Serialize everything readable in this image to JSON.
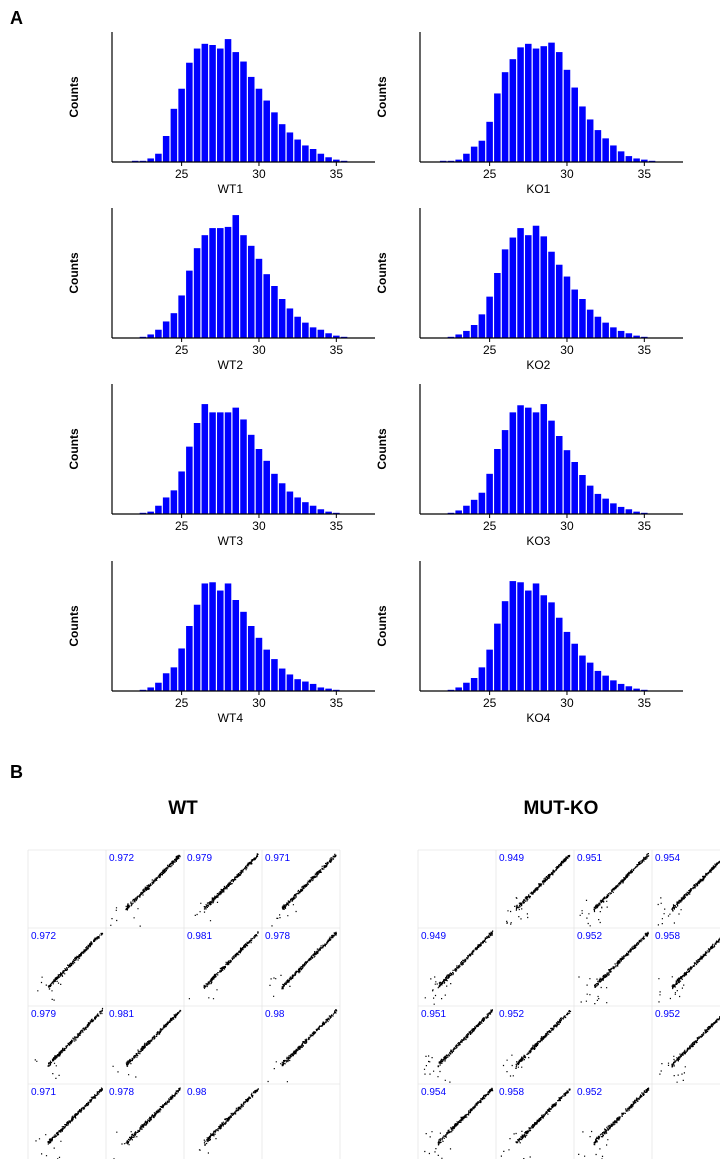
{
  "panel_labels": {
    "a": "A",
    "b": "B"
  },
  "chart_data": [
    {
      "type": "bar",
      "kind": "histogram",
      "panel": "A",
      "bar_color": "#0000ff",
      "xlim": [
        20.5,
        37.5
      ],
      "xticks": [
        25,
        30,
        35
      ],
      "bin_width": 0.5,
      "bin_centers": [
        21.5,
        22,
        22.5,
        23,
        23.5,
        24,
        24.5,
        25,
        25.5,
        26,
        26.5,
        27,
        27.5,
        28,
        28.5,
        29,
        29.5,
        30,
        30.5,
        31,
        31.5,
        32,
        32.5,
        33,
        33.5,
        34,
        34.5,
        35,
        35.5,
        36,
        36.5,
        37
      ],
      "ylabel": "Counts",
      "ymax": 110,
      "histograms": [
        {
          "name": "WT1",
          "values": [
            0,
            1,
            1,
            3,
            7,
            22,
            45,
            62,
            84,
            96,
            100,
            99,
            96,
            104,
            93,
            85,
            72,
            62,
            52,
            42,
            32,
            25,
            19,
            14,
            11,
            7,
            4,
            2,
            1,
            0,
            0,
            0
          ]
        },
        {
          "name": "KO1",
          "values": [
            0,
            1,
            1,
            2,
            7,
            13,
            18,
            34,
            58,
            76,
            87,
            97,
            100,
            96,
            98,
            101,
            93,
            78,
            63,
            47,
            36,
            27,
            20,
            14,
            9,
            5,
            3,
            2,
            1,
            0,
            0,
            0
          ]
        },
        {
          "name": "WT2",
          "values": [
            0,
            0,
            1,
            3,
            7,
            14,
            21,
            36,
            57,
            76,
            87,
            93,
            93,
            94,
            104,
            87,
            78,
            67,
            54,
            44,
            33,
            25,
            18,
            13,
            9,
            7,
            4,
            2,
            1,
            0,
            0,
            0
          ]
        },
        {
          "name": "KO2",
          "values": [
            0,
            0,
            1,
            3,
            6,
            11,
            20,
            35,
            55,
            75,
            85,
            93,
            87,
            95,
            86,
            73,
            62,
            52,
            41,
            33,
            24,
            18,
            13,
            9,
            6,
            4,
            2,
            1,
            0,
            0,
            0,
            0
          ]
        },
        {
          "name": "WT3",
          "values": [
            0,
            0,
            1,
            2,
            7,
            14,
            20,
            36,
            57,
            77,
            93,
            86,
            86,
            86,
            90,
            80,
            67,
            55,
            45,
            34,
            26,
            19,
            14,
            10,
            7,
            4,
            2,
            1,
            0,
            0,
            0,
            0
          ]
        },
        {
          "name": "KO3",
          "values": [
            0,
            0,
            1,
            3,
            7,
            12,
            18,
            34,
            55,
            71,
            86,
            92,
            90,
            86,
            93,
            79,
            66,
            54,
            44,
            33,
            24,
            17,
            13,
            9,
            6,
            4,
            2,
            1,
            0,
            0,
            0,
            0
          ]
        },
        {
          "name": "WT4",
          "values": [
            0,
            0,
            1,
            3,
            7,
            15,
            20,
            36,
            55,
            73,
            91,
            92,
            85,
            91,
            77,
            67,
            55,
            45,
            35,
            27,
            19,
            14,
            10,
            8,
            6,
            3,
            2,
            1,
            0,
            0,
            0,
            0
          ]
        },
        {
          "name": "KO4",
          "values": [
            0,
            0,
            1,
            3,
            7,
            11,
            20,
            35,
            57,
            76,
            93,
            92,
            85,
            91,
            81,
            75,
            62,
            50,
            40,
            30,
            24,
            17,
            13,
            9,
            6,
            4,
            2,
            1,
            0,
            0,
            0,
            0
          ]
        }
      ]
    },
    {
      "type": "scatter",
      "kind": "pairwise-correlation-matrix",
      "panel": "B",
      "title": "WT",
      "n": 4,
      "point_color": "#000000",
      "label_color": "#0000ff",
      "correlations": [
        [
          null,
          "0.972",
          "0.979",
          "0.971"
        ],
        [
          "0.972",
          null,
          "0.981",
          "0.978"
        ],
        [
          "0.979",
          "0.981",
          null,
          "0.98"
        ],
        [
          "0.971",
          "0.978",
          "0.98",
          null
        ]
      ]
    },
    {
      "type": "scatter",
      "kind": "pairwise-correlation-matrix",
      "panel": "B",
      "title": "MUT-KO",
      "n": 4,
      "point_color": "#000000",
      "label_color": "#0000ff",
      "correlations": [
        [
          null,
          "0.949",
          "0.951",
          "0.954"
        ],
        [
          "0.949",
          null,
          "0.952",
          "0.958"
        ],
        [
          "0.951",
          "0.952",
          null,
          "0.952"
        ],
        [
          "0.954",
          "0.958",
          "0.952",
          null
        ]
      ]
    }
  ]
}
